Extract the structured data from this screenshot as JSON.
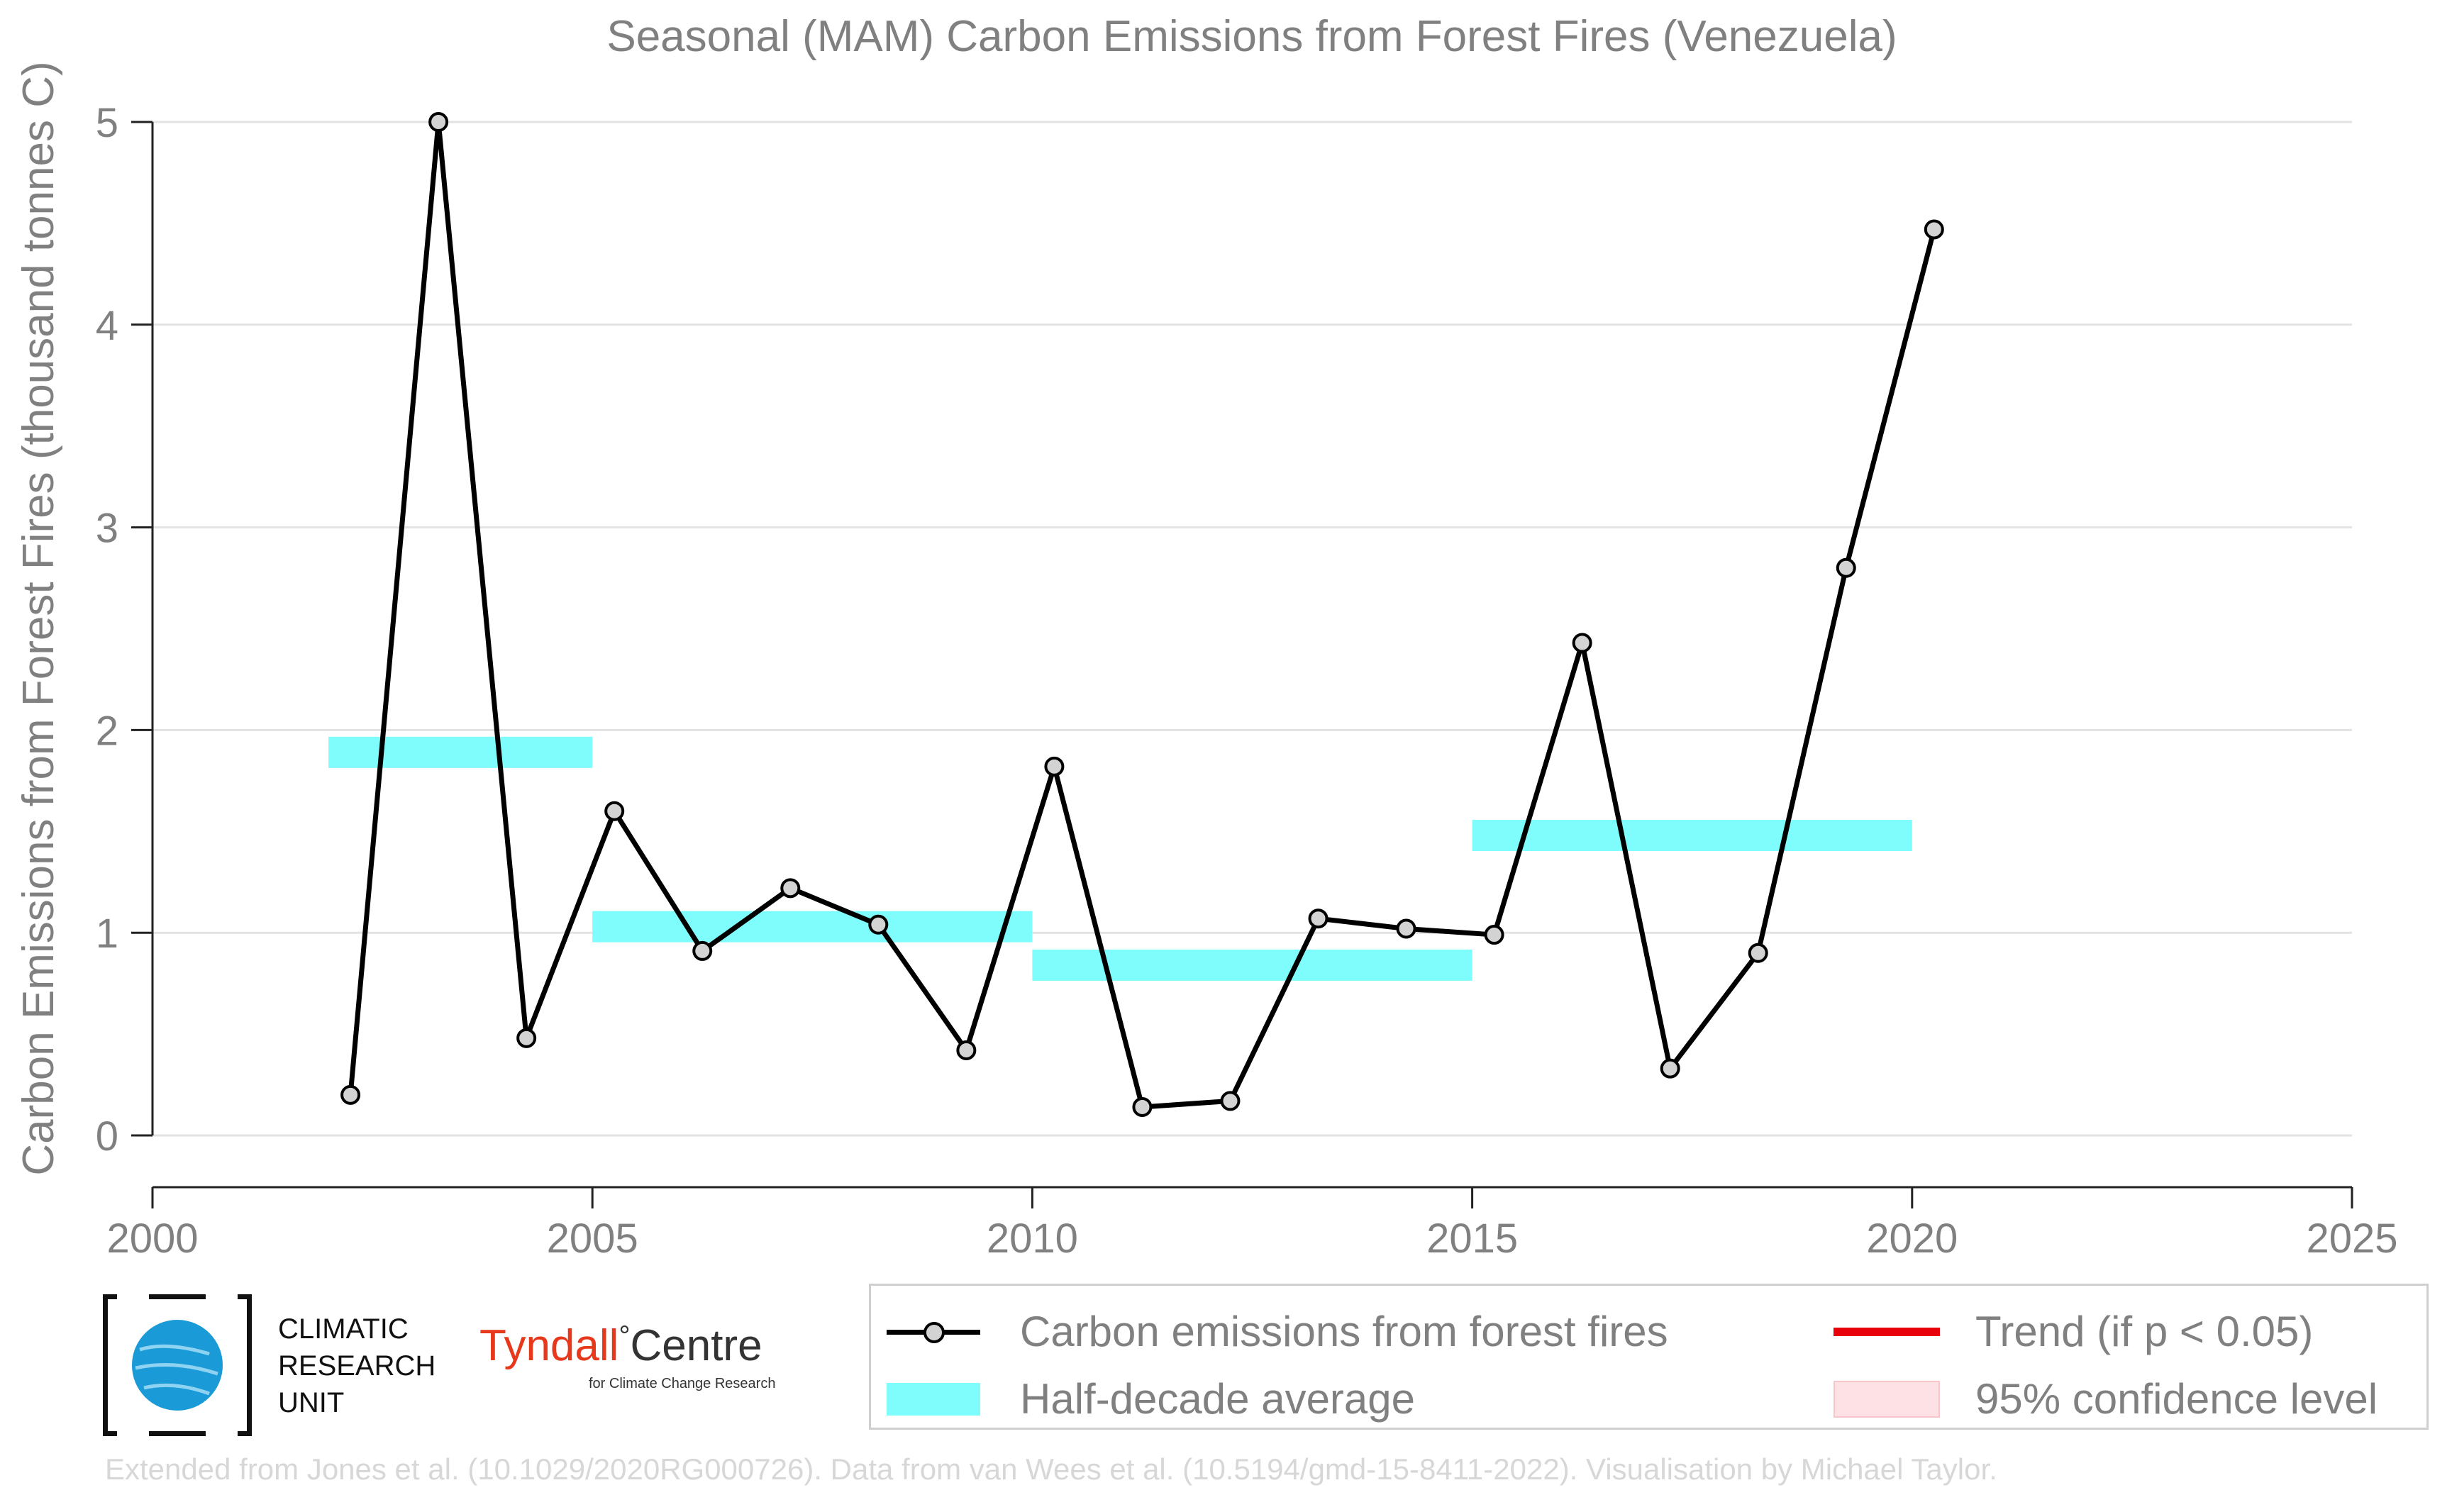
{
  "chart_data": {
    "type": "line",
    "title": "Seasonal (MAM) Carbon Emissions from Forest Fires (Venezuela)",
    "ylabel": "Carbon Emissions from Forest Fires (thousand tonnes C)",
    "xlabel": "",
    "xlim": [
      2000,
      2025
    ],
    "ylim": [
      0,
      5
    ],
    "x_ticks": [
      "2000",
      "2005",
      "2010",
      "2015",
      "2020",
      "2025"
    ],
    "y_ticks": [
      "0",
      "1",
      "2",
      "3",
      "4",
      "5"
    ],
    "grid": "horizontal",
    "legend_position": "bottom-right",
    "series": [
      {
        "name": "Carbon emissions from forest fires",
        "color": "#000000",
        "x": [
          2002.25,
          2003.25,
          2004.25,
          2005.25,
          2006.25,
          2007.25,
          2008.25,
          2009.25,
          2010.25,
          2011.25,
          2012.25,
          2013.25,
          2014.25,
          2015.25,
          2016.25,
          2017.25,
          2018.25,
          2019.25,
          2020.25
        ],
        "values": [
          0.2,
          5.0,
          0.48,
          1.6,
          0.91,
          1.22,
          1.04,
          0.42,
          1.82,
          0.14,
          0.17,
          1.07,
          1.02,
          0.99,
          2.43,
          0.33,
          0.9,
          2.8,
          4.47
        ]
      }
    ],
    "half_decade_average": {
      "name": "Half-decade average",
      "color": "#7ffcfc",
      "segments": [
        {
          "x0": 2002,
          "x1": 2005,
          "value": 1.89
        },
        {
          "x0": 2005,
          "x1": 2010,
          "value": 1.03
        },
        {
          "x0": 2010,
          "x1": 2015,
          "value": 0.84
        },
        {
          "x0": 2015,
          "x1": 2020,
          "value": 1.48
        }
      ]
    },
    "legend": [
      {
        "label": "Carbon emissions from forest fires",
        "type": "line-marker",
        "color": "#000000"
      },
      {
        "label": "Half-decade average",
        "type": "band",
        "color": "#7ffcfc"
      },
      {
        "label": "Trend (if p < 0.05)",
        "type": "line",
        "color": "#e8000b"
      },
      {
        "label": "95% confidence level",
        "type": "fill",
        "color": "#fde1e4"
      }
    ]
  },
  "logos": {
    "cru_lines": [
      "CLIMATIC",
      "RESEARCH",
      "UNIT"
    ],
    "tyndall_left": "Tyndall",
    "tyndall_degree": "°",
    "tyndall_right": "Centre",
    "tyndall_sub": "for Climate Change Research"
  },
  "footer": "Extended from Jones et al. (10.1029/2020RG000726). Data from van Wees et al. (10.5194/gmd-15-8411-2022). Visualisation by Michael Taylor."
}
